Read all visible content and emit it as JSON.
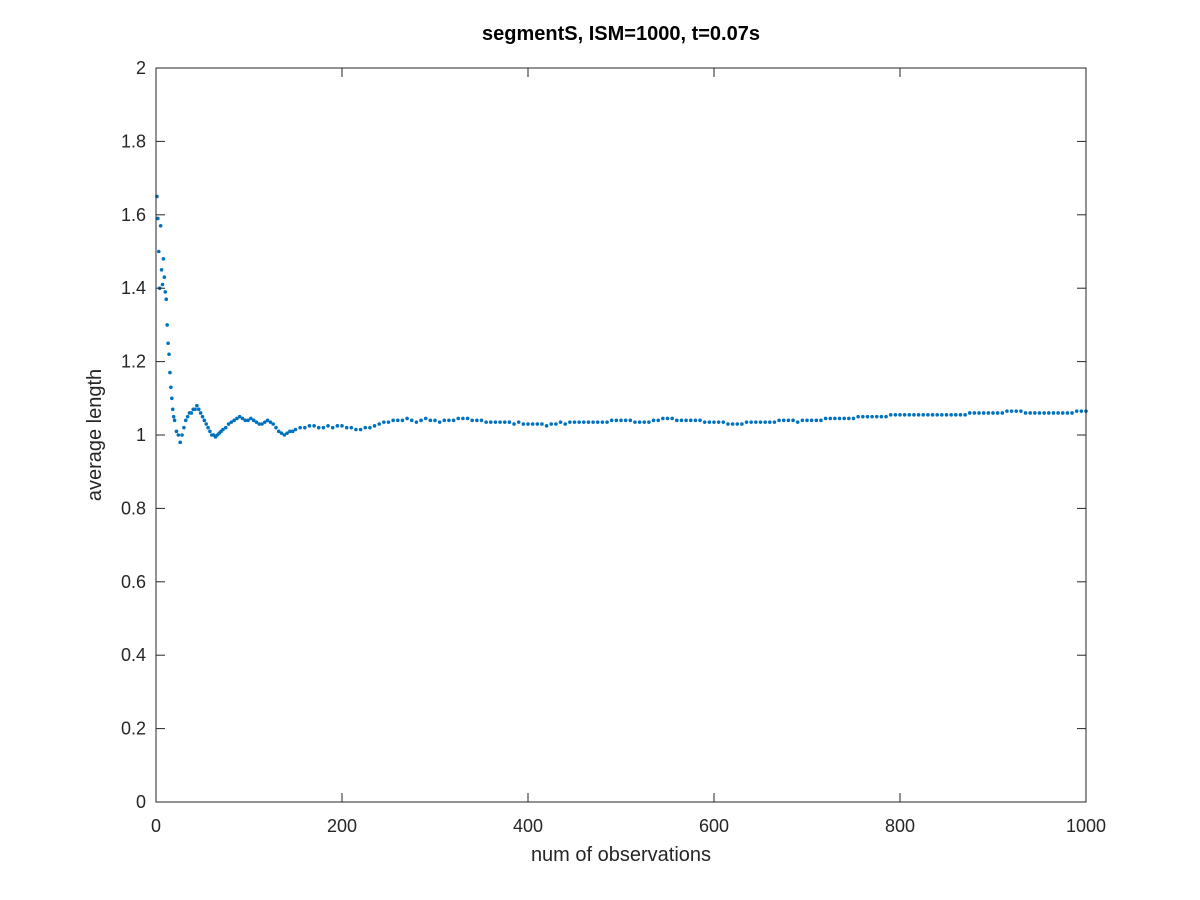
{
  "chart_data": {
    "type": "scatter",
    "title": "segmentS, ISM=1000, t=0.07s",
    "xlabel": "num of observations",
    "ylabel": "average length",
    "xlim": [
      0,
      1000
    ],
    "ylim": [
      0,
      2
    ],
    "x_ticks": [
      0,
      200,
      400,
      600,
      800,
      1000
    ],
    "x_tick_labels": [
      "0",
      "200",
      "400",
      "600",
      "800",
      "1000"
    ],
    "y_ticks": [
      0,
      0.2,
      0.4,
      0.6,
      0.8,
      1,
      1.2,
      1.4,
      1.6,
      1.8,
      2
    ],
    "y_tick_labels": [
      "0",
      "0.2",
      "0.4",
      "0.6",
      "0.8",
      "1",
      "1.2",
      "1.4",
      "1.6",
      "1.8",
      "2"
    ],
    "grid": false,
    "box": true,
    "marker_color": "#0072BD",
    "series": [
      {
        "points": [
          [
            1,
            1.65
          ],
          [
            2,
            1.59
          ],
          [
            3,
            1.5
          ],
          [
            4,
            1.4
          ],
          [
            5,
            1.57
          ],
          [
            6,
            1.45
          ],
          [
            7,
            1.41
          ],
          [
            8,
            1.48
          ],
          [
            9,
            1.43
          ],
          [
            10,
            1.39
          ],
          [
            11,
            1.37
          ],
          [
            12,
            1.3
          ],
          [
            13,
            1.25
          ],
          [
            14,
            1.22
          ],
          [
            15,
            1.17
          ],
          [
            16,
            1.13
          ],
          [
            17,
            1.1
          ],
          [
            18,
            1.07
          ],
          [
            19,
            1.05
          ],
          [
            20,
            1.04
          ],
          [
            22,
            1.01
          ],
          [
            24,
            1.0
          ],
          [
            26,
            0.98
          ],
          [
            28,
            1.0
          ],
          [
            30,
            1.02
          ],
          [
            32,
            1.04
          ],
          [
            34,
            1.05
          ],
          [
            36,
            1.06
          ],
          [
            38,
            1.06
          ],
          [
            40,
            1.07
          ],
          [
            42,
            1.07
          ],
          [
            44,
            1.08
          ],
          [
            46,
            1.07
          ],
          [
            48,
            1.06
          ],
          [
            50,
            1.05
          ],
          [
            52,
            1.04
          ],
          [
            54,
            1.03
          ],
          [
            56,
            1.02
          ],
          [
            58,
            1.01
          ],
          [
            60,
            1.0
          ],
          [
            62,
            1.0
          ],
          [
            64,
            0.995
          ],
          [
            66,
            1.0
          ],
          [
            68,
            1.005
          ],
          [
            70,
            1.01
          ],
          [
            72,
            1.015
          ],
          [
            75,
            1.02
          ],
          [
            78,
            1.03
          ],
          [
            81,
            1.035
          ],
          [
            84,
            1.04
          ],
          [
            87,
            1.045
          ],
          [
            90,
            1.05
          ],
          [
            93,
            1.045
          ],
          [
            96,
            1.04
          ],
          [
            99,
            1.04
          ],
          [
            102,
            1.045
          ],
          [
            105,
            1.04
          ],
          [
            108,
            1.035
          ],
          [
            111,
            1.03
          ],
          [
            114,
            1.03
          ],
          [
            117,
            1.035
          ],
          [
            120,
            1.04
          ],
          [
            123,
            1.035
          ],
          [
            126,
            1.03
          ],
          [
            129,
            1.02
          ],
          [
            132,
            1.01
          ],
          [
            135,
            1.005
          ],
          [
            138,
            1.0
          ],
          [
            141,
            1.005
          ],
          [
            144,
            1.01
          ],
          [
            147,
            1.01
          ],
          [
            150,
            1.015
          ],
          [
            155,
            1.02
          ],
          [
            160,
            1.02
          ],
          [
            165,
            1.025
          ],
          [
            170,
            1.025
          ],
          [
            175,
            1.02
          ],
          [
            180,
            1.02
          ],
          [
            185,
            1.025
          ],
          [
            190,
            1.02
          ],
          [
            195,
            1.025
          ],
          [
            200,
            1.025
          ],
          [
            205,
            1.02
          ],
          [
            210,
            1.02
          ],
          [
            215,
            1.015
          ],
          [
            220,
            1.015
          ],
          [
            225,
            1.02
          ],
          [
            230,
            1.02
          ],
          [
            235,
            1.025
          ],
          [
            240,
            1.03
          ],
          [
            245,
            1.035
          ],
          [
            250,
            1.035
          ],
          [
            255,
            1.04
          ],
          [
            260,
            1.04
          ],
          [
            265,
            1.04
          ],
          [
            270,
            1.045
          ],
          [
            275,
            1.04
          ],
          [
            280,
            1.035
          ],
          [
            285,
            1.04
          ],
          [
            290,
            1.045
          ],
          [
            295,
            1.04
          ],
          [
            300,
            1.04
          ],
          [
            305,
            1.035
          ],
          [
            310,
            1.04
          ],
          [
            315,
            1.04
          ],
          [
            320,
            1.04
          ],
          [
            325,
            1.045
          ],
          [
            330,
            1.045
          ],
          [
            335,
            1.045
          ],
          [
            340,
            1.04
          ],
          [
            345,
            1.04
          ],
          [
            350,
            1.04
          ],
          [
            355,
            1.035
          ],
          [
            360,
            1.035
          ],
          [
            365,
            1.035
          ],
          [
            370,
            1.035
          ],
          [
            375,
            1.035
          ],
          [
            380,
            1.035
          ],
          [
            385,
            1.03
          ],
          [
            390,
            1.035
          ],
          [
            395,
            1.03
          ],
          [
            400,
            1.03
          ],
          [
            405,
            1.03
          ],
          [
            410,
            1.03
          ],
          [
            415,
            1.03
          ],
          [
            420,
            1.025
          ],
          [
            425,
            1.03
          ],
          [
            430,
            1.03
          ],
          [
            435,
            1.035
          ],
          [
            440,
            1.03
          ],
          [
            445,
            1.035
          ],
          [
            450,
            1.035
          ],
          [
            455,
            1.035
          ],
          [
            460,
            1.035
          ],
          [
            465,
            1.035
          ],
          [
            470,
            1.035
          ],
          [
            475,
            1.035
          ],
          [
            480,
            1.035
          ],
          [
            485,
            1.035
          ],
          [
            490,
            1.04
          ],
          [
            495,
            1.04
          ],
          [
            500,
            1.04
          ],
          [
            505,
            1.04
          ],
          [
            510,
            1.04
          ],
          [
            515,
            1.035
          ],
          [
            520,
            1.035
          ],
          [
            525,
            1.035
          ],
          [
            530,
            1.035
          ],
          [
            535,
            1.04
          ],
          [
            540,
            1.04
          ],
          [
            545,
            1.045
          ],
          [
            550,
            1.045
          ],
          [
            555,
            1.045
          ],
          [
            560,
            1.04
          ],
          [
            565,
            1.04
          ],
          [
            570,
            1.04
          ],
          [
            575,
            1.04
          ],
          [
            580,
            1.04
          ],
          [
            585,
            1.04
          ],
          [
            590,
            1.035
          ],
          [
            595,
            1.035
          ],
          [
            600,
            1.035
          ],
          [
            605,
            1.035
          ],
          [
            610,
            1.035
          ],
          [
            615,
            1.03
          ],
          [
            620,
            1.03
          ],
          [
            625,
            1.03
          ],
          [
            630,
            1.03
          ],
          [
            635,
            1.035
          ],
          [
            640,
            1.035
          ],
          [
            645,
            1.035
          ],
          [
            650,
            1.035
          ],
          [
            655,
            1.035
          ],
          [
            660,
            1.035
          ],
          [
            665,
            1.035
          ],
          [
            670,
            1.04
          ],
          [
            675,
            1.04
          ],
          [
            680,
            1.04
          ],
          [
            685,
            1.04
          ],
          [
            690,
            1.035
          ],
          [
            695,
            1.04
          ],
          [
            700,
            1.04
          ],
          [
            705,
            1.04
          ],
          [
            710,
            1.04
          ],
          [
            715,
            1.04
          ],
          [
            720,
            1.045
          ],
          [
            725,
            1.045
          ],
          [
            730,
            1.045
          ],
          [
            735,
            1.045
          ],
          [
            740,
            1.045
          ],
          [
            745,
            1.045
          ],
          [
            750,
            1.045
          ],
          [
            755,
            1.05
          ],
          [
            760,
            1.05
          ],
          [
            765,
            1.05
          ],
          [
            770,
            1.05
          ],
          [
            775,
            1.05
          ],
          [
            780,
            1.05
          ],
          [
            785,
            1.05
          ],
          [
            790,
            1.055
          ],
          [
            795,
            1.055
          ],
          [
            800,
            1.055
          ],
          [
            805,
            1.055
          ],
          [
            810,
            1.055
          ],
          [
            815,
            1.055
          ],
          [
            820,
            1.055
          ],
          [
            825,
            1.055
          ],
          [
            830,
            1.055
          ],
          [
            835,
            1.055
          ],
          [
            840,
            1.055
          ],
          [
            845,
            1.055
          ],
          [
            850,
            1.055
          ],
          [
            855,
            1.055
          ],
          [
            860,
            1.055
          ],
          [
            865,
            1.055
          ],
          [
            870,
            1.055
          ],
          [
            875,
            1.06
          ],
          [
            880,
            1.06
          ],
          [
            885,
            1.06
          ],
          [
            890,
            1.06
          ],
          [
            895,
            1.06
          ],
          [
            900,
            1.06
          ],
          [
            905,
            1.06
          ],
          [
            910,
            1.06
          ],
          [
            915,
            1.065
          ],
          [
            920,
            1.065
          ],
          [
            925,
            1.065
          ],
          [
            930,
            1.065
          ],
          [
            935,
            1.06
          ],
          [
            940,
            1.06
          ],
          [
            945,
            1.06
          ],
          [
            950,
            1.06
          ],
          [
            955,
            1.06
          ],
          [
            960,
            1.06
          ],
          [
            965,
            1.06
          ],
          [
            970,
            1.06
          ],
          [
            975,
            1.06
          ],
          [
            980,
            1.06
          ],
          [
            985,
            1.06
          ],
          [
            990,
            1.065
          ],
          [
            995,
            1.065
          ],
          [
            1000,
            1.065
          ]
        ]
      }
    ]
  }
}
